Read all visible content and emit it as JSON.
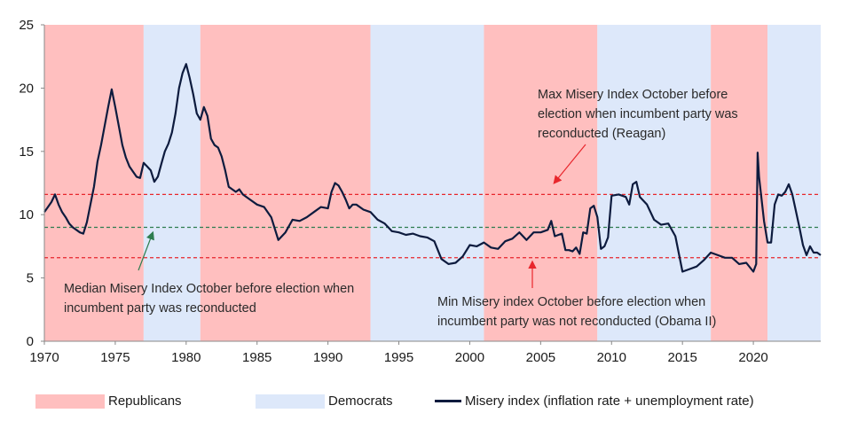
{
  "chart_data": {
    "type": "line",
    "title": "",
    "xlabel": "",
    "ylabel": "",
    "xlim": [
      1970,
      2024.75
    ],
    "ylim": [
      0,
      25
    ],
    "x_ticks": [
      "1970",
      "1975",
      "1980",
      "1985",
      "1990",
      "1995",
      "2000",
      "2005",
      "2010",
      "2015",
      "2020"
    ],
    "y_ticks": [
      "0",
      "5",
      "10",
      "15",
      "20",
      "25"
    ],
    "grid": false,
    "background_periods": [
      {
        "party": "Republicans",
        "start": 1970.0,
        "end": 1977.0
      },
      {
        "party": "Democrats",
        "start": 1977.0,
        "end": 1981.0
      },
      {
        "party": "Republicans",
        "start": 1981.0,
        "end": 1993.0
      },
      {
        "party": "Democrats",
        "start": 1993.0,
        "end": 2001.0
      },
      {
        "party": "Republicans",
        "start": 2001.0,
        "end": 2009.0
      },
      {
        "party": "Democrats",
        "start": 2009.0,
        "end": 2017.0
      },
      {
        "party": "Republicans",
        "start": 2017.0,
        "end": 2021.0
      },
      {
        "party": "Democrats",
        "start": 2021.0,
        "end": 2024.75
      }
    ],
    "reference_lines": [
      {
        "id": "max",
        "value": 11.6,
        "color": "#e8262c"
      },
      {
        "id": "median",
        "value": 9.0,
        "color": "#2e7d4f"
      },
      {
        "id": "min",
        "value": 6.6,
        "color": "#e8262c"
      }
    ],
    "annotations": [
      {
        "id": "max",
        "lines": [
          "Max Misery Index October before",
          "election when incumbent party was",
          "reconducted (Reagan)"
        ]
      },
      {
        "id": "median",
        "lines": [
          "Median Misery Index October before election when",
          "incumbent party was reconducted"
        ]
      },
      {
        "id": "min",
        "lines": [
          "Min Misery index October before election when",
          "incumbent party was not reconducted (Obama II)"
        ]
      }
    ],
    "legend": {
      "position": "bottom",
      "items": [
        {
          "label": "Republicans",
          "color": "#ffbfbf",
          "kind": "area"
        },
        {
          "label": "Democrats",
          "color": "#dde8fa",
          "kind": "area"
        },
        {
          "label": "Misery index (inflation rate + unemployment rate)",
          "color": "#0d1b3e",
          "kind": "line"
        }
      ]
    },
    "series": [
      {
        "name": "Misery index (inflation rate + unemployment rate)",
        "color": "#0d1b3e",
        "x": [
          1970.0,
          1970.25,
          1970.5,
          1970.75,
          1971.0,
          1971.25,
          1971.5,
          1971.75,
          1972.0,
          1972.25,
          1972.5,
          1972.75,
          1973.0,
          1973.25,
          1973.5,
          1973.75,
          1974.0,
          1974.25,
          1974.5,
          1974.75,
          1975.0,
          1975.25,
          1975.5,
          1975.75,
          1976.0,
          1976.25,
          1976.5,
          1976.75,
          1977.0,
          1977.25,
          1977.5,
          1977.75,
          1978.0,
          1978.25,
          1978.5,
          1978.75,
          1979.0,
          1979.25,
          1979.5,
          1979.75,
          1980.0,
          1980.25,
          1980.5,
          1980.75,
          1981.0,
          1981.25,
          1981.5,
          1981.75,
          1982.0,
          1982.25,
          1982.5,
          1982.75,
          1983.0,
          1983.25,
          1983.5,
          1983.75,
          1984.0,
          1984.5,
          1985.0,
          1985.5,
          1986.0,
          1986.5,
          1987.0,
          1987.5,
          1988.0,
          1988.5,
          1989.0,
          1989.5,
          1990.0,
          1990.25,
          1990.5,
          1990.75,
          1991.0,
          1991.25,
          1991.5,
          1991.75,
          1992.0,
          1992.5,
          1993.0,
          1993.5,
          1994.0,
          1994.5,
          1995.0,
          1995.5,
          1996.0,
          1996.5,
          1997.0,
          1997.5,
          1998.0,
          1998.5,
          1999.0,
          1999.5,
          2000.0,
          2000.5,
          2001.0,
          2001.5,
          2002.0,
          2002.5,
          2003.0,
          2003.5,
          2004.0,
          2004.5,
          2005.0,
          2005.5,
          2005.75,
          2006.0,
          2006.5,
          2006.75,
          2007.0,
          2007.25,
          2007.5,
          2007.75,
          2008.0,
          2008.25,
          2008.5,
          2008.75,
          2009.0,
          2009.25,
          2009.5,
          2009.75,
          2010.0,
          2010.5,
          2011.0,
          2011.25,
          2011.5,
          2011.75,
          2012.0,
          2012.5,
          2013.0,
          2013.5,
          2014.0,
          2014.5,
          2015.0,
          2015.5,
          2016.0,
          2016.5,
          2017.0,
          2017.5,
          2018.0,
          2018.5,
          2019.0,
          2019.5,
          2020.0,
          2020.2,
          2020.3,
          2020.4,
          2020.5,
          2020.75,
          2021.0,
          2021.25,
          2021.5,
          2021.75,
          2022.0,
          2022.25,
          2022.5,
          2022.75,
          2023.0,
          2023.25,
          2023.5,
          2023.75,
          2024.0,
          2024.25,
          2024.5,
          2024.75
        ],
        "y": [
          10.2,
          10.6,
          11.0,
          11.6,
          10.8,
          10.2,
          9.8,
          9.3,
          9.0,
          8.8,
          8.6,
          8.5,
          9.4,
          10.8,
          12.2,
          14.2,
          15.5,
          17.0,
          18.5,
          19.9,
          18.5,
          17.0,
          15.5,
          14.5,
          13.8,
          13.4,
          13.0,
          12.9,
          14.1,
          13.8,
          13.5,
          12.6,
          13.0,
          14.0,
          15.0,
          15.6,
          16.5,
          18.0,
          20.0,
          21.2,
          21.9,
          20.8,
          19.5,
          18.0,
          17.5,
          18.5,
          17.8,
          16.0,
          15.5,
          15.3,
          14.6,
          13.5,
          12.2,
          12.0,
          11.8,
          12.0,
          11.6,
          11.2,
          10.8,
          10.6,
          9.8,
          8.0,
          8.6,
          9.6,
          9.5,
          9.8,
          10.2,
          10.6,
          10.5,
          11.8,
          12.5,
          12.3,
          11.8,
          11.2,
          10.5,
          10.8,
          10.8,
          10.4,
          10.2,
          9.6,
          9.3,
          8.7,
          8.6,
          8.4,
          8.5,
          8.3,
          8.2,
          7.9,
          6.5,
          6.1,
          6.2,
          6.7,
          7.6,
          7.5,
          7.8,
          7.4,
          7.3,
          7.9,
          8.1,
          8.6,
          8.0,
          8.6,
          8.6,
          8.8,
          9.5,
          8.3,
          8.5,
          7.2,
          7.2,
          7.1,
          7.4,
          6.9,
          8.6,
          8.5,
          10.5,
          10.7,
          9.8,
          7.3,
          7.5,
          8.2,
          11.5,
          11.6,
          11.4,
          10.8,
          12.4,
          12.6,
          11.4,
          10.8,
          9.6,
          9.2,
          9.3,
          8.3,
          5.5,
          5.7,
          5.9,
          6.4,
          7.0,
          6.8,
          6.6,
          6.6,
          6.1,
          6.2,
          5.5,
          6.1,
          14.9,
          13.0,
          12.0,
          9.5,
          7.8,
          7.8,
          10.8,
          11.6,
          11.5,
          11.8,
          12.4,
          11.6,
          10.3,
          9.0,
          7.6,
          6.8,
          7.5,
          7.0,
          7.0,
          6.8
        ]
      }
    ]
  }
}
